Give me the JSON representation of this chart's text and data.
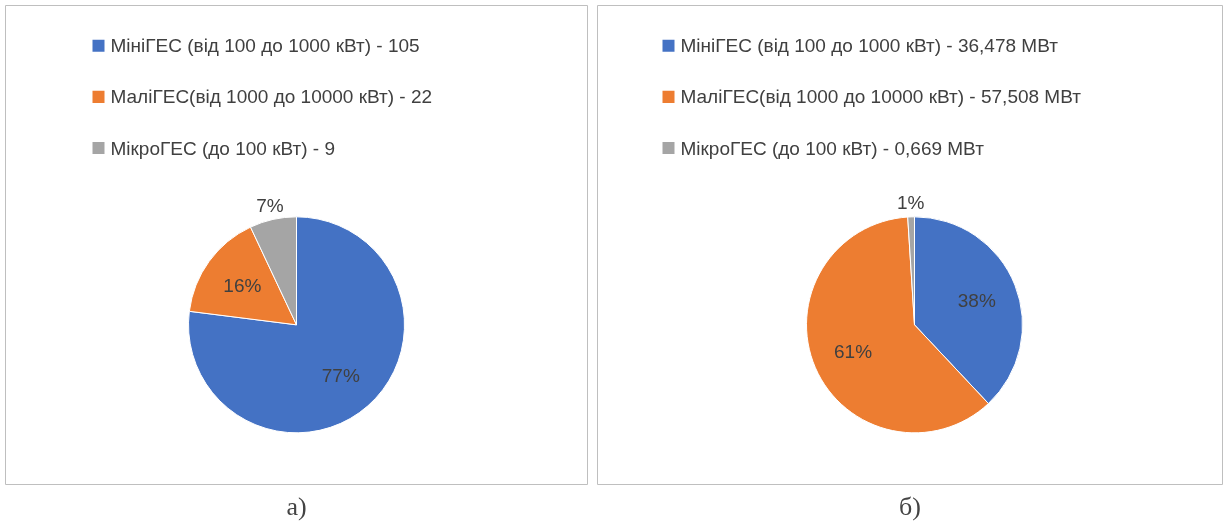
{
  "chart_data": [
    {
      "type": "pie",
      "categories": [
        "МініГЕС (від 100 до 1000 кВт) - 105",
        "МаліГЕС(від 1000 до 10000 кВт) - 22",
        "МікроГЕС (до 100 кВт) - 9"
      ],
      "values": [
        77,
        16,
        7
      ],
      "colors": [
        "#4472c4",
        "#ed7d31",
        "#a5a5a5"
      ],
      "value_labels": [
        "77%",
        "16%",
        "7%"
      ],
      "legend": "top",
      "annotations": [
        "а)"
      ]
    },
    {
      "type": "pie",
      "categories": [
        "МініГЕС (від 100 до 1000 кВт) - 36,478 МВт",
        "МаліГЕС(від 1000 до 10000 кВт) - 57,508 МВт",
        "МікроГЕС (до 100 кВт) - 0,669 МВт"
      ],
      "values": [
        38,
        61,
        1
      ],
      "colors": [
        "#4472c4",
        "#ed7d31",
        "#a5a5a5"
      ],
      "value_labels": [
        "38%",
        "61%",
        "1%"
      ],
      "legend": "top",
      "annotations": [
        "б)"
      ]
    }
  ]
}
